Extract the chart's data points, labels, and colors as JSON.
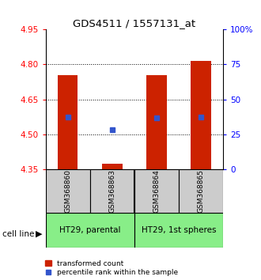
{
  "title": "GDS4511 / 1557131_at",
  "samples": [
    "GSM368860",
    "GSM368863",
    "GSM368864",
    "GSM368865"
  ],
  "bar_bottoms": [
    4.35,
    4.35,
    4.35,
    4.35
  ],
  "bar_tops": [
    4.755,
    4.375,
    4.755,
    4.815
  ],
  "blue_y": [
    4.575,
    4.52,
    4.57,
    4.575
  ],
  "ylim": [
    4.35,
    4.95
  ],
  "yticks_left": [
    4.35,
    4.5,
    4.65,
    4.8,
    4.95
  ],
  "yticks_right_vals": [
    4.35,
    4.5,
    4.65,
    4.8,
    4.95
  ],
  "yticks_right_labels": [
    "0",
    "25",
    "50",
    "75",
    "100%"
  ],
  "cell_lines": [
    "HT29, parental",
    "HT29, 1st spheres"
  ],
  "bar_color": "#cc2200",
  "blue_color": "#3355cc",
  "bar_width": 0.45,
  "sample_box_color": "#cccccc",
  "cell_line_bg": "#88ee88",
  "legend_label_red": "transformed count",
  "legend_label_blue": "percentile rank within the sample"
}
